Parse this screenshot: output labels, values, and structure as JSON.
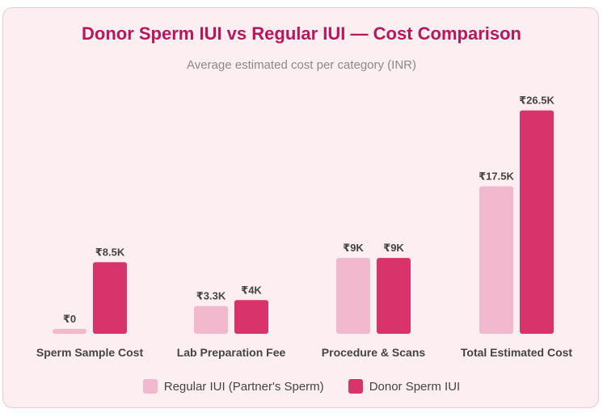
{
  "title": "Donor Sperm IUI vs Regular IUI — Cost Comparison",
  "subtitle": "Average estimated cost per category (INR)",
  "colors": {
    "background": "#fdeef2",
    "border": "#f3c6d3",
    "title": "#b8175a",
    "regular": "#f2b8cd",
    "donor": "#d8346b"
  },
  "chart_data": {
    "type": "bar",
    "categories": [
      "Sperm Sample Cost",
      "Lab Preparation Fee",
      "Procedure & Scans",
      "Total Estimated Cost"
    ],
    "series": [
      {
        "name": "Regular IUI (Partner's Sperm)",
        "values": [
          0,
          3300,
          9000,
          17500
        ],
        "labels": [
          "₹0",
          "₹3.3K",
          "₹9K",
          "₹17.5K"
        ],
        "color": "#f2b8cd"
      },
      {
        "name": "Donor Sperm IUI",
        "values": [
          8500,
          4000,
          9000,
          26500
        ],
        "labels": [
          "₹8.5K",
          "₹4K",
          "₹9K",
          "₹26.5K"
        ],
        "color": "#d8346b"
      }
    ],
    "ylim": [
      0,
      28000
    ],
    "grid": false,
    "legend": "bottom"
  }
}
